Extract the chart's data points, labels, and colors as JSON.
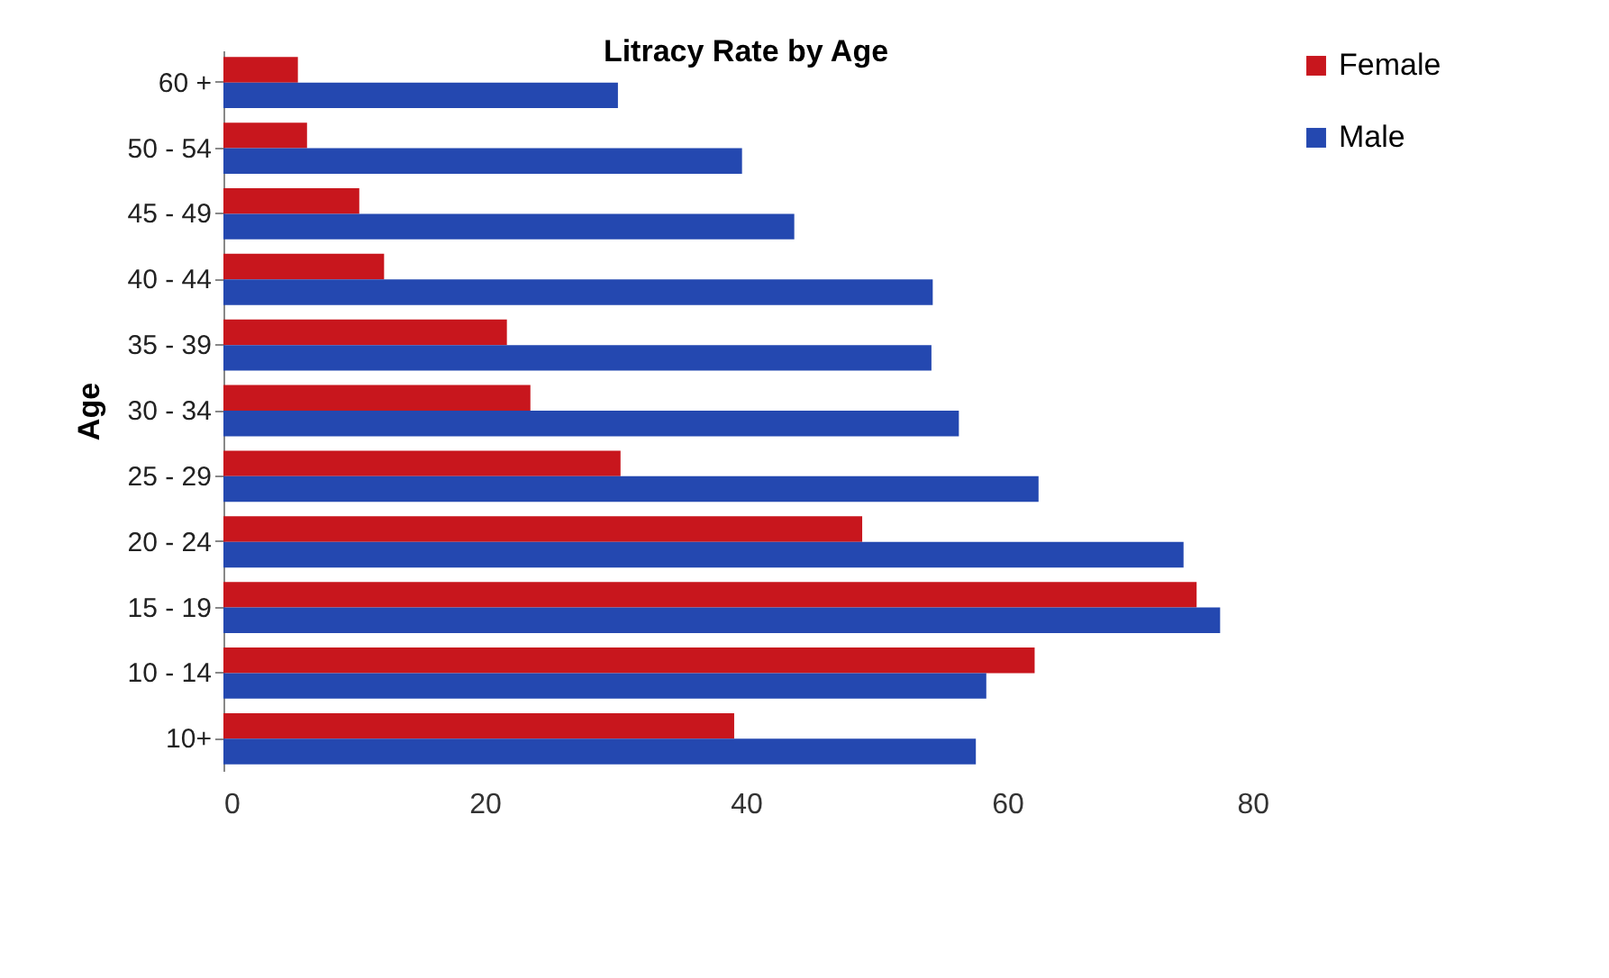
{
  "chart_data": {
    "type": "bar",
    "orientation": "horizontal",
    "title": "Litracy Rate by Age",
    "ylabel": "Age",
    "categories": [
      "60 +",
      "50 - 54",
      "45 - 49",
      "40 - 44",
      "35 - 39",
      "30 - 34",
      "25 - 29",
      "20 - 24",
      "15 - 19",
      "10 - 14",
      "10+"
    ],
    "series": [
      {
        "name": "Female",
        "color": "#c8161d",
        "values": [
          5.7,
          6.4,
          10.4,
          12.3,
          21.7,
          23.5,
          30.4,
          48.9,
          74.5,
          62.1,
          39.1
        ]
      },
      {
        "name": "Male",
        "color": "#2448b0",
        "values": [
          30.2,
          39.7,
          43.7,
          54.3,
          54.2,
          56.3,
          62.4,
          73.5,
          76.3,
          58.4,
          57.6
        ]
      }
    ],
    "xlim": [
      0,
      80
    ],
    "xticks": [
      0,
      20,
      40,
      60,
      80
    ],
    "grid": false,
    "legend": "right"
  }
}
